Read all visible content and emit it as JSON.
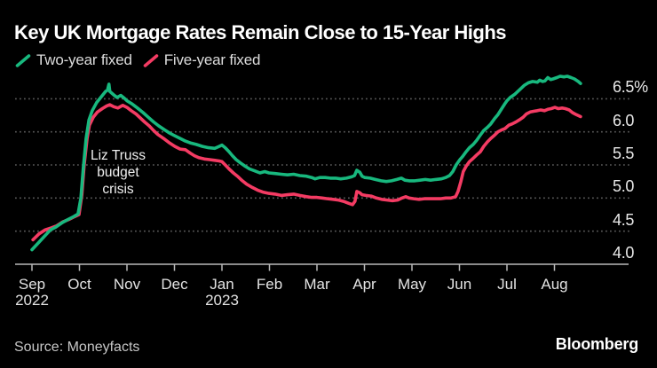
{
  "header": {
    "title": "Key UK Mortgage Rates Remain Close to 15-Year Highs"
  },
  "annotation": {
    "lines": [
      "Liz Truss",
      "budget",
      "crisis"
    ]
  },
  "footer": {
    "source": "Source: Moneyfacts",
    "logo": "Bloomberg"
  },
  "colors": {
    "background": "#000000",
    "two_year": "#18b87e",
    "five_year": "#f43b63",
    "grid": "#585858",
    "axis": "#b9b9b9"
  },
  "chart_data": {
    "type": "line",
    "title": "Key UK Mortgage Rates Remain Close to 15-Year Highs",
    "annotation": "Liz Truss budget crisis",
    "grid": "horizontal dotted",
    "legend_position": "top-left",
    "x_axis": {
      "months": [
        "Sep",
        "Oct",
        "Nov",
        "Dec",
        "Jan",
        "Feb",
        "Mar",
        "Apr",
        "May",
        "Jun",
        "Jul",
        "Aug"
      ],
      "years": [
        {
          "label": "2022",
          "month_index": 0
        },
        {
          "label": "2023",
          "month_index": 4
        }
      ]
    },
    "y_axis": {
      "unit": "%",
      "ticks": [
        4.0,
        4.5,
        5.0,
        5.5,
        6.0,
        6.5
      ],
      "tick_labels": [
        "4.0",
        "4.5",
        "5.0",
        "5.5",
        "6.0",
        "6.5%"
      ],
      "range": [
        4.0,
        7.0
      ]
    },
    "series": [
      {
        "name": "Two-year fixed",
        "color": "#18b87e",
        "points": [
          [
            0,
            4.22
          ],
          [
            0.13,
            4.32
          ],
          [
            0.26,
            4.42
          ],
          [
            0.39,
            4.52
          ],
          [
            0.5,
            4.56
          ],
          [
            0.64,
            4.63
          ],
          [
            0.77,
            4.68
          ],
          [
            0.88,
            4.72
          ],
          [
            0.97,
            4.76
          ],
          [
            1.03,
            5.0
          ],
          [
            1.08,
            5.45
          ],
          [
            1.14,
            5.9
          ],
          [
            1.2,
            6.18
          ],
          [
            1.27,
            6.32
          ],
          [
            1.36,
            6.44
          ],
          [
            1.46,
            6.53
          ],
          [
            1.55,
            6.61
          ],
          [
            1.59,
            6.63
          ],
          [
            1.62,
            6.72
          ],
          [
            1.64,
            6.61
          ],
          [
            1.72,
            6.56
          ],
          [
            1.79,
            6.52
          ],
          [
            1.87,
            6.55
          ],
          [
            1.94,
            6.51
          ],
          [
            2.0,
            6.47
          ],
          [
            2.11,
            6.42
          ],
          [
            2.22,
            6.36
          ],
          [
            2.34,
            6.29
          ],
          [
            2.45,
            6.22
          ],
          [
            2.56,
            6.15
          ],
          [
            2.67,
            6.09
          ],
          [
            2.79,
            6.03
          ],
          [
            2.9,
            5.98
          ],
          [
            3.01,
            5.94
          ],
          [
            3.12,
            5.9
          ],
          [
            3.23,
            5.86
          ],
          [
            3.35,
            5.83
          ],
          [
            3.46,
            5.81
          ],
          [
            3.59,
            5.78
          ],
          [
            3.72,
            5.76
          ],
          [
            3.85,
            5.75
          ],
          [
            3.94,
            5.78
          ],
          [
            4.0,
            5.8
          ],
          [
            4.07,
            5.76
          ],
          [
            4.15,
            5.7
          ],
          [
            4.22,
            5.64
          ],
          [
            4.3,
            5.58
          ],
          [
            4.39,
            5.53
          ],
          [
            4.49,
            5.48
          ],
          [
            4.58,
            5.44
          ],
          [
            4.69,
            5.41
          ],
          [
            4.8,
            5.38
          ],
          [
            4.9,
            5.4
          ],
          [
            4.99,
            5.38
          ],
          [
            5.12,
            5.37
          ],
          [
            5.25,
            5.36
          ],
          [
            5.38,
            5.35
          ],
          [
            5.51,
            5.36
          ],
          [
            5.64,
            5.34
          ],
          [
            5.78,
            5.33
          ],
          [
            5.89,
            5.31
          ],
          [
            5.96,
            5.29
          ],
          [
            6.06,
            5.31
          ],
          [
            6.17,
            5.31
          ],
          [
            6.28,
            5.3
          ],
          [
            6.39,
            5.3
          ],
          [
            6.5,
            5.29
          ],
          [
            6.62,
            5.3
          ],
          [
            6.73,
            5.32
          ],
          [
            6.79,
            5.34
          ],
          [
            6.84,
            5.42
          ],
          [
            6.9,
            5.39
          ],
          [
            6.95,
            5.33
          ],
          [
            7.01,
            5.31
          ],
          [
            7.12,
            5.3
          ],
          [
            7.23,
            5.28
          ],
          [
            7.35,
            5.26
          ],
          [
            7.46,
            5.25
          ],
          [
            7.57,
            5.26
          ],
          [
            7.68,
            5.28
          ],
          [
            7.78,
            5.3
          ],
          [
            7.85,
            5.27
          ],
          [
            7.94,
            5.26
          ],
          [
            8.06,
            5.26
          ],
          [
            8.17,
            5.27
          ],
          [
            8.28,
            5.28
          ],
          [
            8.39,
            5.27
          ],
          [
            8.5,
            5.28
          ],
          [
            8.62,
            5.29
          ],
          [
            8.71,
            5.31
          ],
          [
            8.79,
            5.34
          ],
          [
            8.86,
            5.4
          ],
          [
            8.93,
            5.5
          ],
          [
            9.01,
            5.58
          ],
          [
            9.07,
            5.63
          ],
          [
            9.14,
            5.7
          ],
          [
            9.21,
            5.76
          ],
          [
            9.29,
            5.81
          ],
          [
            9.36,
            5.87
          ],
          [
            9.44,
            5.95
          ],
          [
            9.51,
            6.02
          ],
          [
            9.59,
            6.07
          ],
          [
            9.66,
            6.12
          ],
          [
            9.74,
            6.2
          ],
          [
            9.81,
            6.26
          ],
          [
            9.89,
            6.35
          ],
          [
            9.96,
            6.43
          ],
          [
            10.0,
            6.47
          ],
          [
            10.07,
            6.52
          ],
          [
            10.17,
            6.57
          ],
          [
            10.26,
            6.63
          ],
          [
            10.36,
            6.7
          ],
          [
            10.45,
            6.74
          ],
          [
            10.54,
            6.76
          ],
          [
            10.64,
            6.75
          ],
          [
            10.69,
            6.78
          ],
          [
            10.75,
            6.76
          ],
          [
            10.8,
            6.77
          ],
          [
            10.86,
            6.82
          ],
          [
            10.92,
            6.79
          ],
          [
            10.97,
            6.8
          ],
          [
            11.05,
            6.82
          ],
          [
            11.12,
            6.84
          ],
          [
            11.2,
            6.83
          ],
          [
            11.27,
            6.84
          ],
          [
            11.35,
            6.82
          ],
          [
            11.42,
            6.8
          ],
          [
            11.5,
            6.76
          ],
          [
            11.55,
            6.73
          ]
        ]
      },
      {
        "name": "Five-year fixed",
        "color": "#f43b63",
        "points": [
          [
            0.02,
            4.37
          ],
          [
            0.15,
            4.46
          ],
          [
            0.28,
            4.52
          ],
          [
            0.41,
            4.55
          ],
          [
            0.52,
            4.58
          ],
          [
            0.65,
            4.64
          ],
          [
            0.79,
            4.68
          ],
          [
            0.9,
            4.72
          ],
          [
            0.99,
            4.75
          ],
          [
            1.05,
            5.05
          ],
          [
            1.1,
            5.5
          ],
          [
            1.16,
            5.9
          ],
          [
            1.21,
            6.1
          ],
          [
            1.29,
            6.22
          ],
          [
            1.38,
            6.3
          ],
          [
            1.48,
            6.35
          ],
          [
            1.57,
            6.39
          ],
          [
            1.64,
            6.41
          ],
          [
            1.72,
            6.38
          ],
          [
            1.81,
            6.36
          ],
          [
            1.91,
            6.4
          ],
          [
            2.0,
            6.37
          ],
          [
            2.09,
            6.32
          ],
          [
            2.19,
            6.27
          ],
          [
            2.28,
            6.21
          ],
          [
            2.37,
            6.15
          ],
          [
            2.47,
            6.09
          ],
          [
            2.56,
            6.02
          ],
          [
            2.65,
            5.96
          ],
          [
            2.77,
            5.9
          ],
          [
            2.88,
            5.84
          ],
          [
            3.01,
            5.78
          ],
          [
            3.12,
            5.74
          ],
          [
            3.23,
            5.73
          ],
          [
            3.33,
            5.68
          ],
          [
            3.42,
            5.64
          ],
          [
            3.51,
            5.61
          ],
          [
            3.63,
            5.59
          ],
          [
            3.74,
            5.58
          ],
          [
            3.85,
            5.57
          ],
          [
            3.94,
            5.56
          ],
          [
            4.0,
            5.55
          ],
          [
            4.07,
            5.5
          ],
          [
            4.15,
            5.44
          ],
          [
            4.24,
            5.38
          ],
          [
            4.34,
            5.32
          ],
          [
            4.43,
            5.26
          ],
          [
            4.52,
            5.21
          ],
          [
            4.64,
            5.16
          ],
          [
            4.75,
            5.12
          ],
          [
            4.86,
            5.09
          ],
          [
            4.99,
            5.07
          ],
          [
            5.12,
            5.06
          ],
          [
            5.25,
            5.04
          ],
          [
            5.38,
            5.05
          ],
          [
            5.51,
            5.06
          ],
          [
            5.64,
            5.04
          ],
          [
            5.78,
            5.02
          ],
          [
            5.89,
            5.01
          ],
          [
            6.0,
            5.01
          ],
          [
            6.11,
            5.0
          ],
          [
            6.22,
            4.99
          ],
          [
            6.34,
            4.98
          ],
          [
            6.45,
            4.97
          ],
          [
            6.56,
            4.95
          ],
          [
            6.67,
            4.92
          ],
          [
            6.75,
            4.9
          ],
          [
            6.8,
            4.95
          ],
          [
            6.84,
            5.1
          ],
          [
            6.9,
            5.08
          ],
          [
            6.95,
            5.05
          ],
          [
            7.03,
            5.04
          ],
          [
            7.14,
            5.03
          ],
          [
            7.25,
            5.0
          ],
          [
            7.36,
            4.98
          ],
          [
            7.48,
            4.97
          ],
          [
            7.59,
            4.96
          ],
          [
            7.7,
            4.97
          ],
          [
            7.79,
            5.0
          ],
          [
            7.87,
            5.02
          ],
          [
            7.94,
            5.0
          ],
          [
            8.04,
            4.99
          ],
          [
            8.15,
            4.98
          ],
          [
            8.26,
            4.99
          ],
          [
            8.37,
            4.99
          ],
          [
            8.49,
            4.99
          ],
          [
            8.6,
            4.99
          ],
          [
            8.71,
            5.0
          ],
          [
            8.82,
            5.0
          ],
          [
            8.92,
            5.02
          ],
          [
            8.97,
            5.1
          ],
          [
            9.03,
            5.25
          ],
          [
            9.08,
            5.4
          ],
          [
            9.14,
            5.48
          ],
          [
            9.21,
            5.55
          ],
          [
            9.29,
            5.6
          ],
          [
            9.36,
            5.65
          ],
          [
            9.44,
            5.7
          ],
          [
            9.51,
            5.78
          ],
          [
            9.59,
            5.85
          ],
          [
            9.66,
            5.9
          ],
          [
            9.74,
            5.95
          ],
          [
            9.81,
            6.0
          ],
          [
            9.89,
            6.03
          ],
          [
            9.96,
            6.05
          ],
          [
            10.04,
            6.1
          ],
          [
            10.11,
            6.12
          ],
          [
            10.19,
            6.15
          ],
          [
            10.26,
            6.18
          ],
          [
            10.34,
            6.22
          ],
          [
            10.41,
            6.27
          ],
          [
            10.49,
            6.3
          ],
          [
            10.56,
            6.31
          ],
          [
            10.64,
            6.32
          ],
          [
            10.71,
            6.33
          ],
          [
            10.79,
            6.32
          ],
          [
            10.86,
            6.34
          ],
          [
            10.93,
            6.35
          ],
          [
            11.01,
            6.37
          ],
          [
            11.08,
            6.35
          ],
          [
            11.16,
            6.36
          ],
          [
            11.23,
            6.35
          ],
          [
            11.31,
            6.33
          ],
          [
            11.38,
            6.29
          ],
          [
            11.46,
            6.26
          ],
          [
            11.55,
            6.23
          ]
        ]
      }
    ]
  }
}
